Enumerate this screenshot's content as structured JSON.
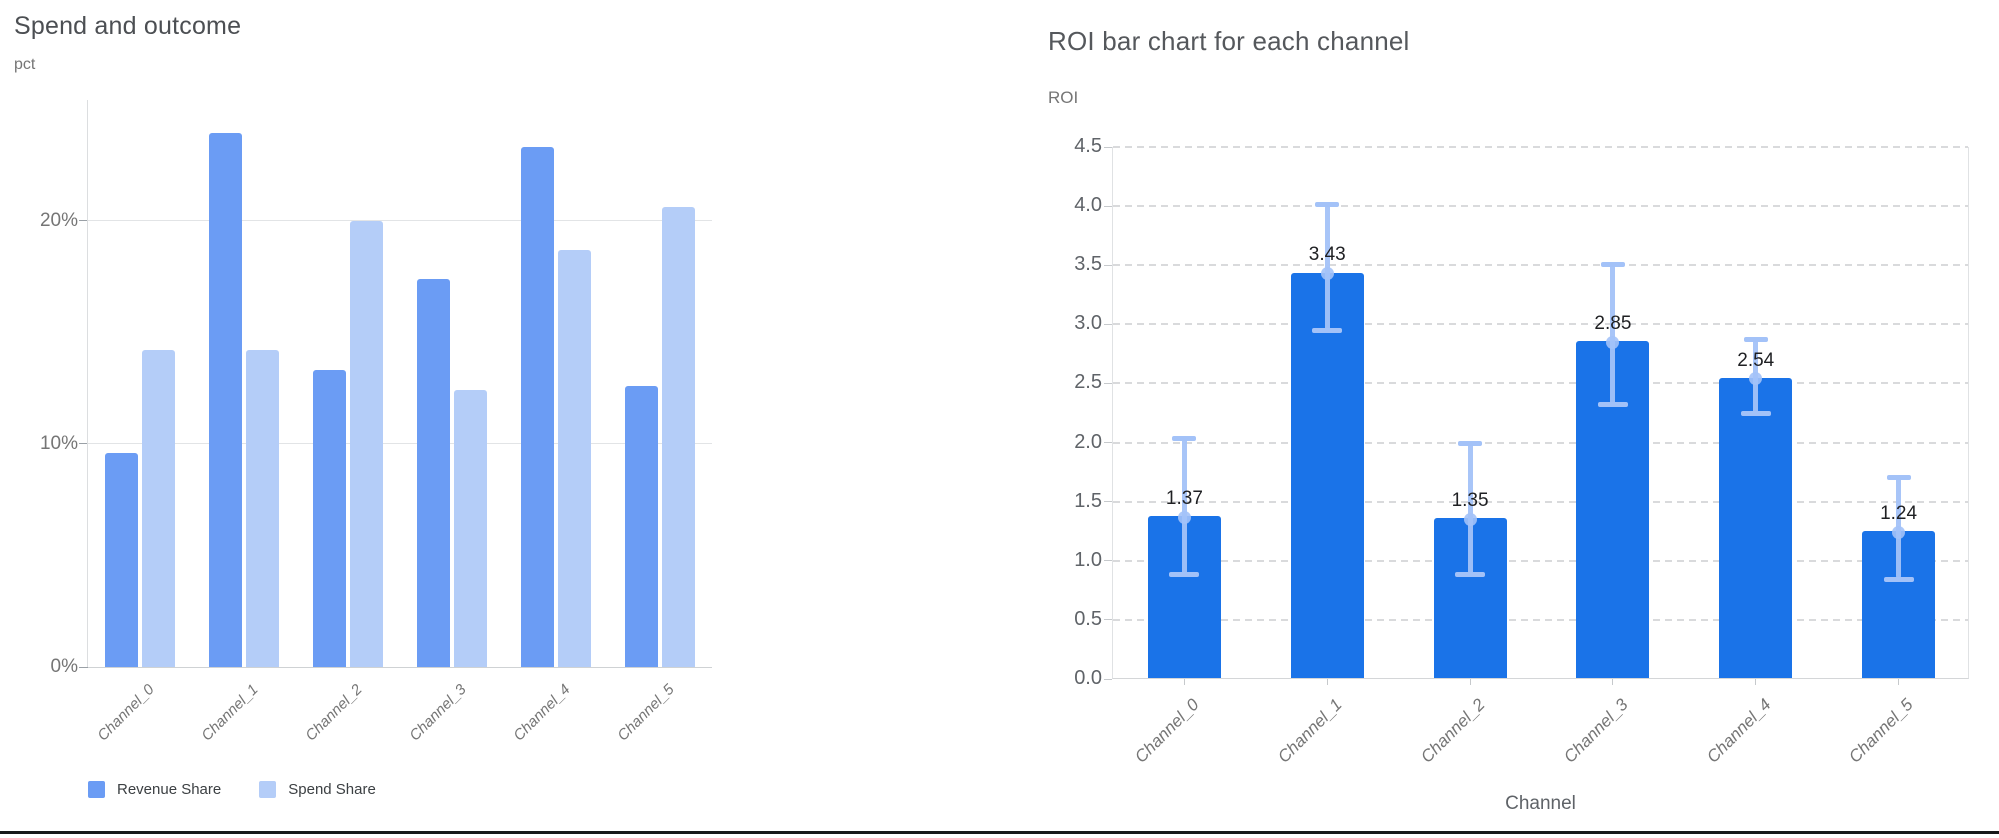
{
  "page": {
    "background": "#ffffff"
  },
  "chart_data": [
    {
      "type": "bar",
      "title": "Spend and outcome",
      "ylabel": "pct",
      "xlabel": "",
      "unit": "%",
      "categories": [
        "Channel_0",
        "Channel_1",
        "Channel_2",
        "Channel_3",
        "Channel_4",
        "Channel_5"
      ],
      "series": [
        {
          "name": "Revenue Share",
          "color": "#6b9cf4",
          "values": [
            9.6,
            23.9,
            13.3,
            17.4,
            23.3,
            12.6
          ]
        },
        {
          "name": "Spend Share",
          "color": "#b4cdf8",
          "values": [
            14.2,
            14.2,
            20.0,
            12.4,
            18.7,
            20.6
          ]
        }
      ],
      "ylim": [
        0,
        25.4
      ],
      "yticks": [
        {
          "value": 0,
          "label": "0%"
        },
        {
          "value": 10,
          "label": "10%"
        },
        {
          "value": 20,
          "label": "20%"
        }
      ],
      "grid": "solid",
      "legend_position": "bottom"
    },
    {
      "type": "bar",
      "title": "ROI bar chart for each channel",
      "ylabel": "ROI",
      "xlabel": "Channel",
      "categories": [
        "Channel_0",
        "Channel_1",
        "Channel_2",
        "Channel_3",
        "Channel_4",
        "Channel_5"
      ],
      "series": [
        {
          "name": "ROI",
          "color": "#1a73e8",
          "values": [
            1.37,
            3.43,
            1.35,
            2.85,
            2.54,
            1.24
          ]
        }
      ],
      "data_labels": [
        "1.37",
        "3.43",
        "1.35",
        "2.85",
        "2.54",
        "1.24"
      ],
      "error_bars": {
        "color": "#a3c2f8",
        "upper": [
          2.04,
          4.02,
          2.0,
          3.51,
          2.88,
          1.71
        ],
        "lower": [
          0.89,
          2.95,
          0.89,
          2.33,
          2.25,
          0.85
        ]
      },
      "ylim": [
        0,
        4.5
      ],
      "yticks": [
        {
          "value": 0.0,
          "label": "0.0"
        },
        {
          "value": 0.5,
          "label": "0.5"
        },
        {
          "value": 1.0,
          "label": "1.0"
        },
        {
          "value": 1.5,
          "label": "1.5"
        },
        {
          "value": 2.0,
          "label": "2.0"
        },
        {
          "value": 2.5,
          "label": "2.5"
        },
        {
          "value": 3.0,
          "label": "3.0"
        },
        {
          "value": 3.5,
          "label": "3.5"
        },
        {
          "value": 4.0,
          "label": "4.0"
        },
        {
          "value": 4.5,
          "label": "4.5"
        }
      ],
      "grid": "dashed",
      "legend_position": "none"
    }
  ]
}
